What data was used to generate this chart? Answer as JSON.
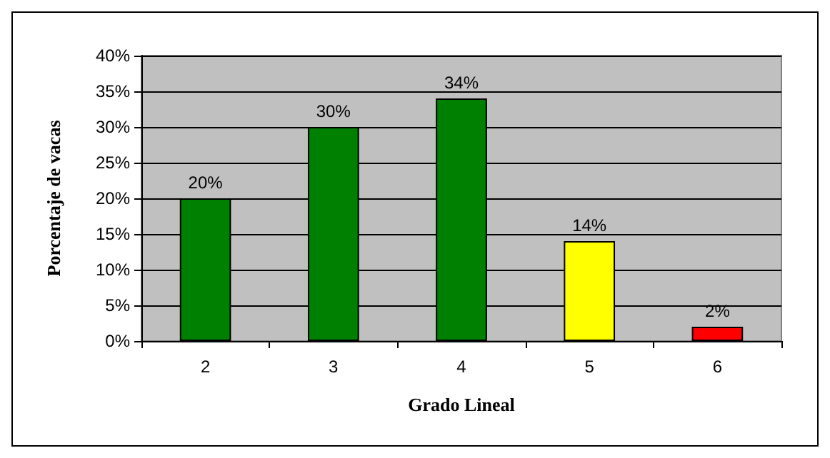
{
  "chart_data": {
    "type": "bar",
    "xlabel": "Grado Lineal",
    "ylabel": "Porcentaje de vacas",
    "categories": [
      "2",
      "3",
      "4",
      "5",
      "6"
    ],
    "values": [
      20,
      30,
      34,
      14,
      2
    ],
    "colors": [
      "#008000",
      "#008000",
      "#008000",
      "#ffff00",
      "#ff0000"
    ],
    "value_labels": [
      "20%",
      "30%",
      "34%",
      "14%",
      "2%"
    ],
    "ylim": [
      0,
      40
    ],
    "yticks": [
      {
        "value": 0,
        "label": "0%"
      },
      {
        "value": 5,
        "label": "5%"
      },
      {
        "value": 10,
        "label": "10%"
      },
      {
        "value": 15,
        "label": "15%"
      },
      {
        "value": 20,
        "label": "20%"
      },
      {
        "value": 25,
        "label": "25%"
      },
      {
        "value": 30,
        "label": "30%"
      },
      {
        "value": 35,
        "label": "35%"
      },
      {
        "value": 40,
        "label": "40%"
      }
    ],
    "grid": "y"
  }
}
